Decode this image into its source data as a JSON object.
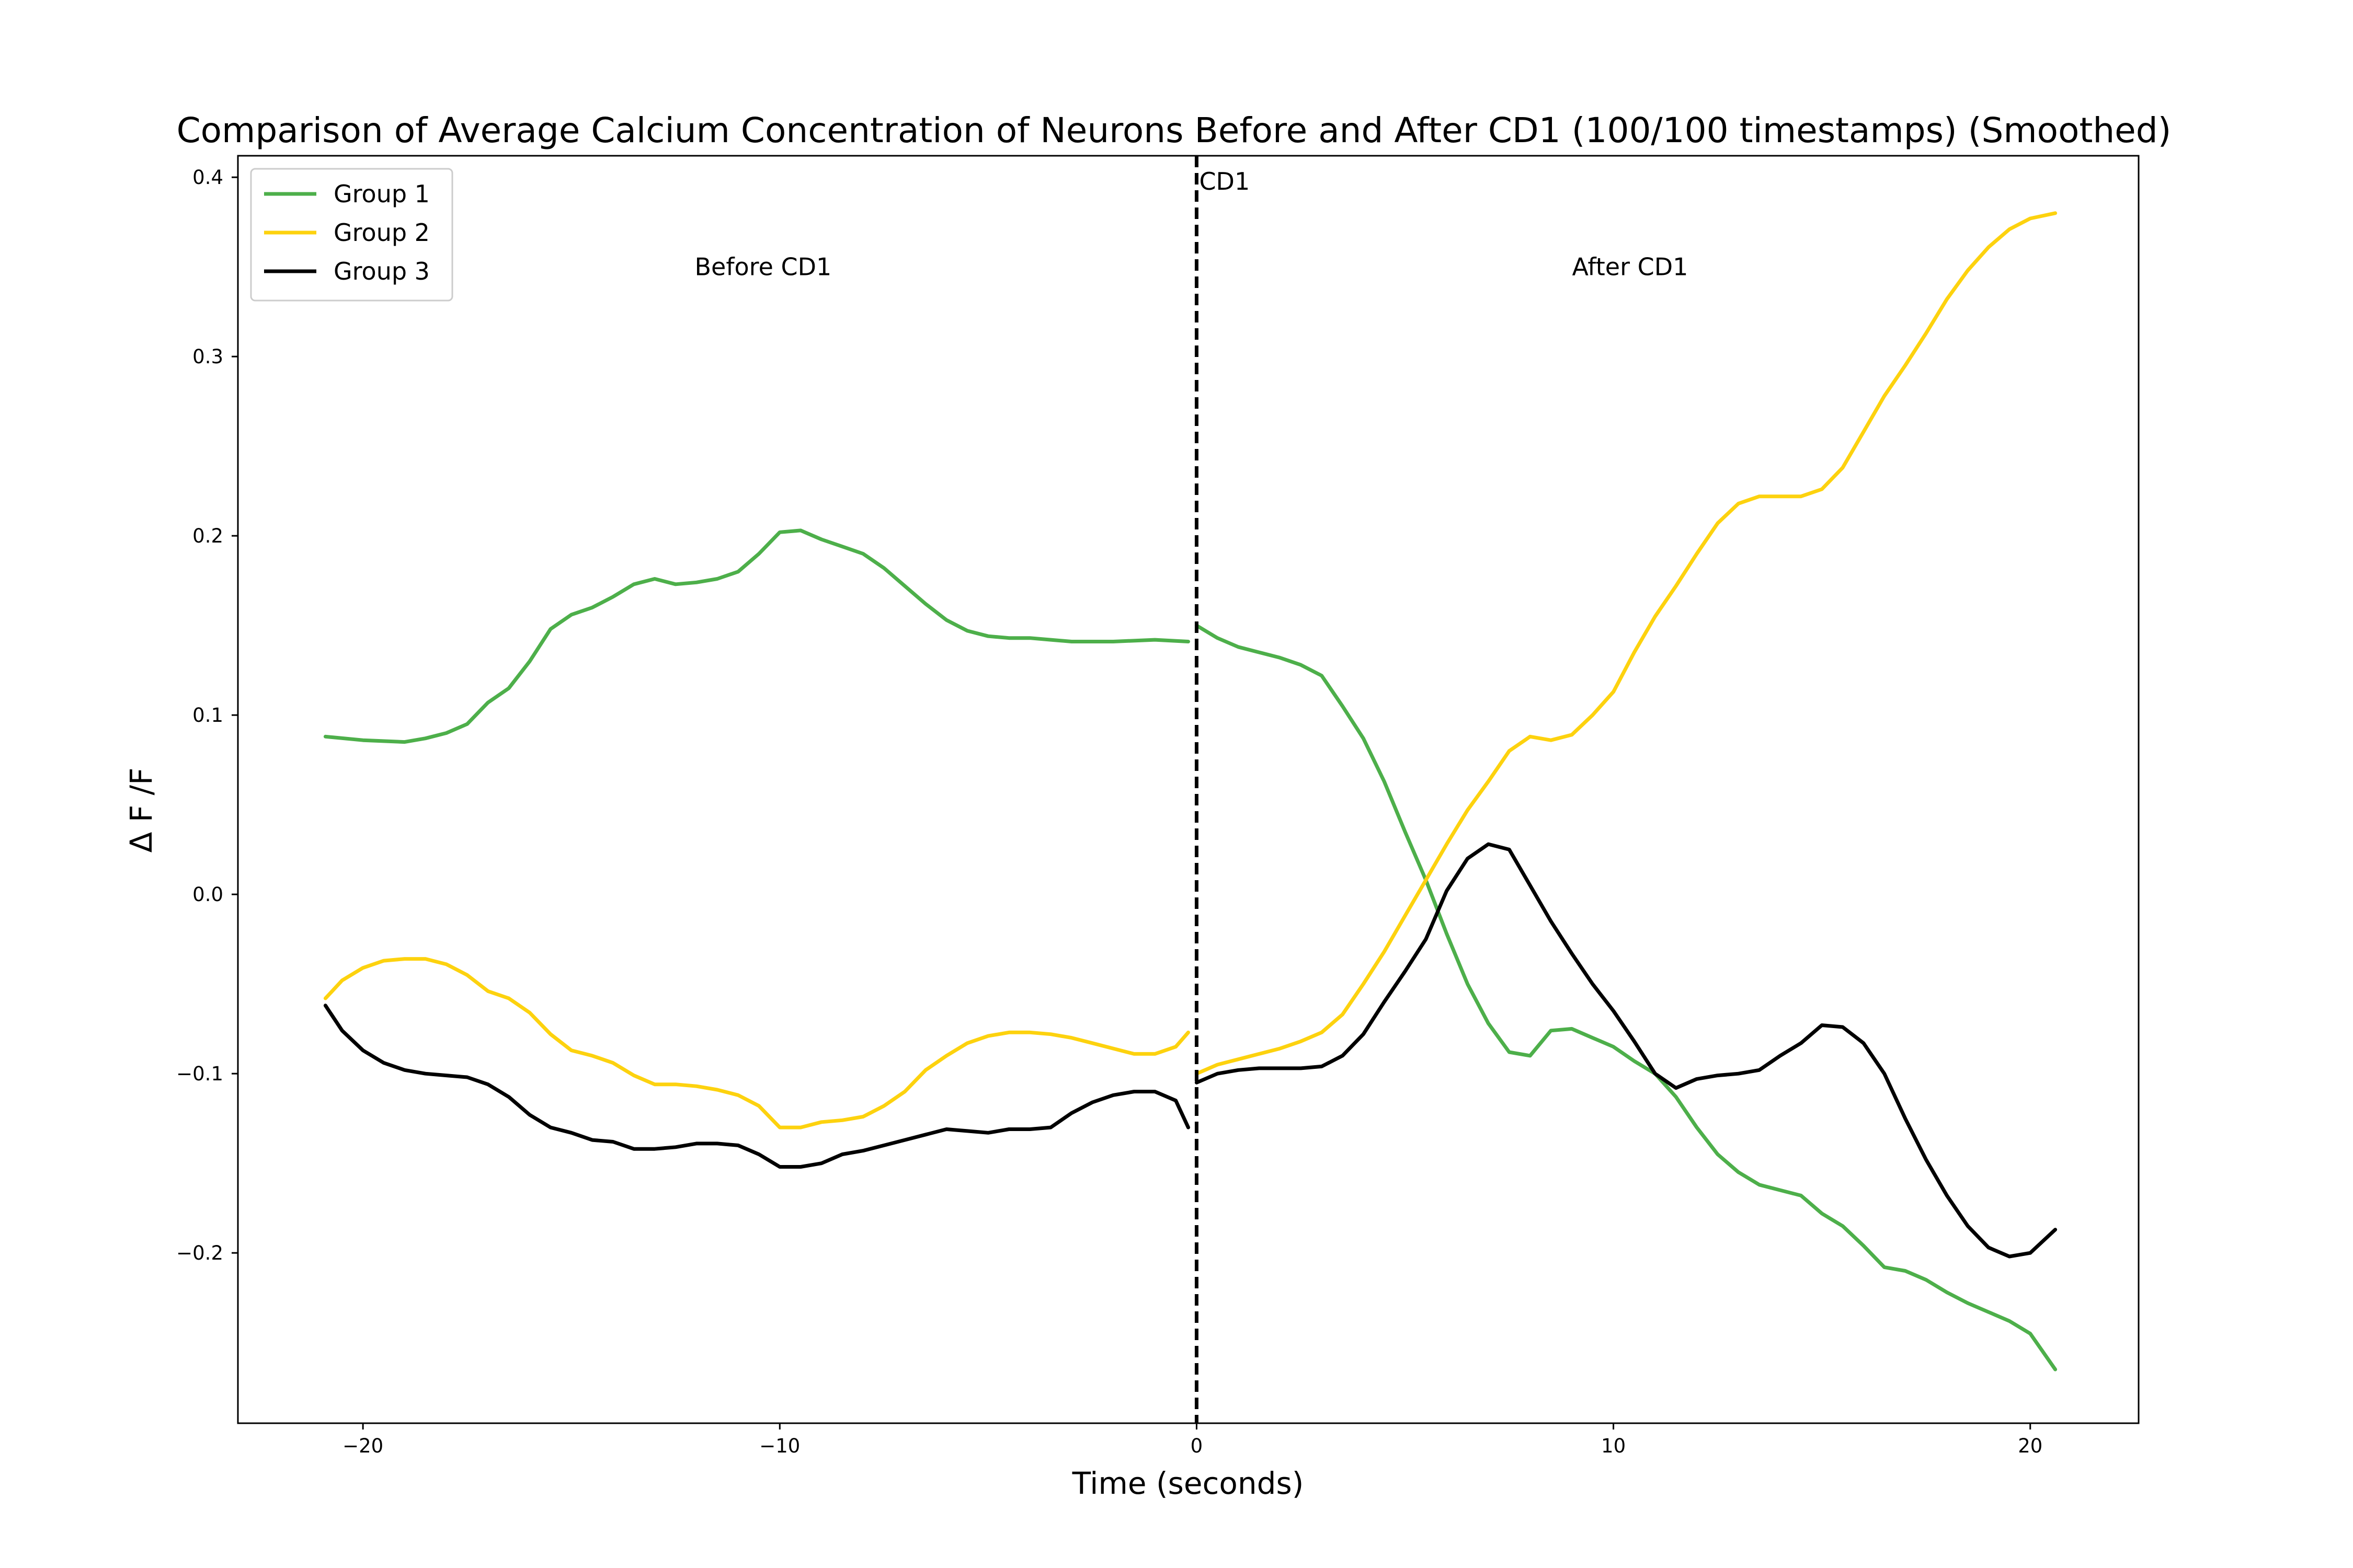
{
  "chart_data": {
    "type": "line",
    "title": "Comparison of Average Calcium Concentration of Neurons Before and After CD1 (100/100 timestamps) (Smoothed)",
    "xlabel": "Time (seconds)",
    "ylabel": "Δ F /F",
    "xlim": [
      -23,
      22.6
    ],
    "ylim": [
      -0.295,
      0.412
    ],
    "xticks": [
      -20,
      -10,
      0,
      10,
      20
    ],
    "xtick_labels": [
      "−20",
      "−10",
      "0",
      "10",
      "20"
    ],
    "yticks": [
      -0.2,
      -0.1,
      0.0,
      0.1,
      0.2,
      0.3,
      0.4
    ],
    "ytick_labels": [
      "−0.2",
      "−0.1",
      "0.0",
      "0.1",
      "0.2",
      "0.3",
      "0.4"
    ],
    "grid": false,
    "legend_position": "top-left",
    "vline": {
      "x": 0,
      "label": "CD1",
      "style": "dashed",
      "color": "#000000"
    },
    "annotations": [
      {
        "text": "Before CD1",
        "x": -10.4,
        "y": 0.35
      },
      {
        "text": "After CD1",
        "x": 10.4,
        "y": 0.35
      }
    ],
    "series": [
      {
        "name": "Group 1",
        "color": "#4daf4a",
        "segments": [
          [
            [
              -20.9,
              0.088
            ],
            [
              -20,
              0.086
            ],
            [
              -19,
              0.085
            ],
            [
              -18.5,
              0.087
            ],
            [
              -18,
              0.09
            ],
            [
              -17.5,
              0.095
            ],
            [
              -17,
              0.107
            ],
            [
              -16.5,
              0.115
            ],
            [
              -16,
              0.13
            ],
            [
              -15.5,
              0.148
            ],
            [
              -15,
              0.156
            ],
            [
              -14.5,
              0.16
            ],
            [
              -14,
              0.166
            ],
            [
              -13.5,
              0.173
            ],
            [
              -13,
              0.176
            ],
            [
              -12.5,
              0.173
            ],
            [
              -12,
              0.174
            ],
            [
              -11.5,
              0.176
            ],
            [
              -11,
              0.18
            ],
            [
              -10.5,
              0.19
            ],
            [
              -10,
              0.202
            ],
            [
              -9.5,
              0.203
            ],
            [
              -9,
              0.198
            ],
            [
              -8.5,
              0.194
            ],
            [
              -8,
              0.19
            ],
            [
              -7.5,
              0.182
            ],
            [
              -7,
              0.172
            ],
            [
              -6.5,
              0.162
            ],
            [
              -6,
              0.153
            ],
            [
              -5.5,
              0.147
            ],
            [
              -5,
              0.144
            ],
            [
              -4.5,
              0.143
            ],
            [
              -4,
              0.143
            ],
            [
              -3.5,
              0.142
            ],
            [
              -3,
              0.141
            ],
            [
              -2,
              0.141
            ],
            [
              -1,
              0.142
            ],
            [
              -0.2,
              0.141
            ]
          ],
          [
            [
              0,
              0.15
            ],
            [
              0.5,
              0.143
            ],
            [
              1,
              0.138
            ],
            [
              1.5,
              0.135
            ],
            [
              2,
              0.132
            ],
            [
              2.5,
              0.128
            ],
            [
              3,
              0.122
            ],
            [
              3.5,
              0.105
            ],
            [
              4,
              0.087
            ],
            [
              4.5,
              0.063
            ],
            [
              5,
              0.035
            ],
            [
              5.5,
              0.008
            ],
            [
              6,
              -0.022
            ],
            [
              6.5,
              -0.05
            ],
            [
              7,
              -0.072
            ],
            [
              7.5,
              -0.088
            ],
            [
              8,
              -0.09
            ],
            [
              8.5,
              -0.076
            ],
            [
              9,
              -0.075
            ],
            [
              9.5,
              -0.08
            ],
            [
              10,
              -0.085
            ],
            [
              10.5,
              -0.093
            ],
            [
              11,
              -0.1
            ],
            [
              11.5,
              -0.113
            ],
            [
              12,
              -0.13
            ],
            [
              12.5,
              -0.145
            ],
            [
              13,
              -0.155
            ],
            [
              13.5,
              -0.162
            ],
            [
              14,
              -0.165
            ],
            [
              14.5,
              -0.168
            ],
            [
              15,
              -0.178
            ],
            [
              15.5,
              -0.185
            ],
            [
              16,
              -0.196
            ],
            [
              16.5,
              -0.208
            ],
            [
              17,
              -0.21
            ],
            [
              17.5,
              -0.215
            ],
            [
              18,
              -0.222
            ],
            [
              18.5,
              -0.228
            ],
            [
              19,
              -0.233
            ],
            [
              19.5,
              -0.238
            ],
            [
              20,
              -0.245
            ],
            [
              20.6,
              -0.265
            ]
          ]
        ]
      },
      {
        "name": "Group 2",
        "color": "#fdd20e",
        "segments": [
          [
            [
              -20.9,
              -0.058
            ],
            [
              -20.5,
              -0.048
            ],
            [
              -20,
              -0.041
            ],
            [
              -19.5,
              -0.037
            ],
            [
              -19,
              -0.036
            ],
            [
              -18.5,
              -0.036
            ],
            [
              -18,
              -0.039
            ],
            [
              -17.5,
              -0.045
            ],
            [
              -17,
              -0.054
            ],
            [
              -16.5,
              -0.058
            ],
            [
              -16,
              -0.066
            ],
            [
              -15.5,
              -0.078
            ],
            [
              -15,
              -0.087
            ],
            [
              -14.5,
              -0.09
            ],
            [
              -14,
              -0.094
            ],
            [
              -13.5,
              -0.101
            ],
            [
              -13,
              -0.106
            ],
            [
              -12.5,
              -0.106
            ],
            [
              -12,
              -0.107
            ],
            [
              -11.5,
              -0.109
            ],
            [
              -11,
              -0.112
            ],
            [
              -10.5,
              -0.118
            ],
            [
              -10,
              -0.13
            ],
            [
              -9.5,
              -0.13
            ],
            [
              -9,
              -0.127
            ],
            [
              -8.5,
              -0.126
            ],
            [
              -8,
              -0.124
            ],
            [
              -7.5,
              -0.118
            ],
            [
              -7,
              -0.11
            ],
            [
              -6.5,
              -0.098
            ],
            [
              -6,
              -0.09
            ],
            [
              -5.5,
              -0.083
            ],
            [
              -5,
              -0.079
            ],
            [
              -4.5,
              -0.077
            ],
            [
              -4,
              -0.077
            ],
            [
              -3.5,
              -0.078
            ],
            [
              -3,
              -0.08
            ],
            [
              -2.5,
              -0.083
            ],
            [
              -2,
              -0.086
            ],
            [
              -1.5,
              -0.089
            ],
            [
              -1,
              -0.089
            ],
            [
              -0.5,
              -0.085
            ],
            [
              -0.2,
              -0.077
            ]
          ],
          [
            [
              0,
              -0.1
            ],
            [
              0.5,
              -0.095
            ],
            [
              1,
              -0.092
            ],
            [
              1.5,
              -0.089
            ],
            [
              2,
              -0.086
            ],
            [
              2.5,
              -0.082
            ],
            [
              3,
              -0.077
            ],
            [
              3.5,
              -0.067
            ],
            [
              4,
              -0.05
            ],
            [
              4.5,
              -0.032
            ],
            [
              5,
              -0.012
            ],
            [
              5.5,
              0.008
            ],
            [
              6,
              0.028
            ],
            [
              6.5,
              0.047
            ],
            [
              7,
              0.063
            ],
            [
              7.5,
              0.08
            ],
            [
              8,
              0.088
            ],
            [
              8.5,
              0.086
            ],
            [
              9,
              0.089
            ],
            [
              9.5,
              0.1
            ],
            [
              10,
              0.113
            ],
            [
              10.5,
              0.135
            ],
            [
              11,
              0.155
            ],
            [
              11.5,
              0.172
            ],
            [
              12,
              0.19
            ],
            [
              12.5,
              0.207
            ],
            [
              13,
              0.218
            ],
            [
              13.5,
              0.222
            ],
            [
              14,
              0.222
            ],
            [
              14.5,
              0.222
            ],
            [
              15,
              0.226
            ],
            [
              15.5,
              0.238
            ],
            [
              16,
              0.258
            ],
            [
              16.5,
              0.278
            ],
            [
              17,
              0.295
            ],
            [
              17.5,
              0.313
            ],
            [
              18,
              0.332
            ],
            [
              18.5,
              0.348
            ],
            [
              19,
              0.361
            ],
            [
              19.5,
              0.371
            ],
            [
              20,
              0.377
            ],
            [
              20.6,
              0.38
            ]
          ]
        ]
      },
      {
        "name": "Group 3",
        "color": "#000000",
        "segments": [
          [
            [
              -20.9,
              -0.062
            ],
            [
              -20.5,
              -0.076
            ],
            [
              -20,
              -0.087
            ],
            [
              -19.5,
              -0.094
            ],
            [
              -19,
              -0.098
            ],
            [
              -18.5,
              -0.1
            ],
            [
              -18,
              -0.101
            ],
            [
              -17.5,
              -0.102
            ],
            [
              -17,
              -0.106
            ],
            [
              -16.5,
              -0.113
            ],
            [
              -16,
              -0.123
            ],
            [
              -15.5,
              -0.13
            ],
            [
              -15,
              -0.133
            ],
            [
              -14.5,
              -0.137
            ],
            [
              -14,
              -0.138
            ],
            [
              -13.5,
              -0.142
            ],
            [
              -13,
              -0.142
            ],
            [
              -12.5,
              -0.141
            ],
            [
              -12,
              -0.139
            ],
            [
              -11.5,
              -0.139
            ],
            [
              -11,
              -0.14
            ],
            [
              -10.5,
              -0.145
            ],
            [
              -10,
              -0.152
            ],
            [
              -9.5,
              -0.152
            ],
            [
              -9,
              -0.15
            ],
            [
              -8.5,
              -0.145
            ],
            [
              -8,
              -0.143
            ],
            [
              -7.5,
              -0.14
            ],
            [
              -7,
              -0.137
            ],
            [
              -6.5,
              -0.134
            ],
            [
              -6,
              -0.131
            ],
            [
              -5.5,
              -0.132
            ],
            [
              -5,
              -0.133
            ],
            [
              -4.5,
              -0.131
            ],
            [
              -4,
              -0.131
            ],
            [
              -3.5,
              -0.13
            ],
            [
              -3,
              -0.122
            ],
            [
              -2.5,
              -0.116
            ],
            [
              -2,
              -0.112
            ],
            [
              -1.5,
              -0.11
            ],
            [
              -1,
              -0.11
            ],
            [
              -0.5,
              -0.115
            ],
            [
              -0.2,
              -0.13
            ]
          ],
          [
            [
              0,
              -0.105
            ],
            [
              0.5,
              -0.1
            ],
            [
              1,
              -0.098
            ],
            [
              1.5,
              -0.097
            ],
            [
              2,
              -0.097
            ],
            [
              2.5,
              -0.097
            ],
            [
              3,
              -0.096
            ],
            [
              3.5,
              -0.09
            ],
            [
              4,
              -0.078
            ],
            [
              4.5,
              -0.06
            ],
            [
              5,
              -0.043
            ],
            [
              5.5,
              -0.025
            ],
            [
              6,
              0.002
            ],
            [
              6.5,
              0.02
            ],
            [
              7,
              0.028
            ],
            [
              7.5,
              0.025
            ],
            [
              8,
              0.005
            ],
            [
              8.5,
              -0.015
            ],
            [
              9,
              -0.033
            ],
            [
              9.5,
              -0.05
            ],
            [
              10,
              -0.065
            ],
            [
              10.5,
              -0.082
            ],
            [
              11,
              -0.1
            ],
            [
              11.5,
              -0.108
            ],
            [
              12,
              -0.103
            ],
            [
              12.5,
              -0.101
            ],
            [
              13,
              -0.1
            ],
            [
              13.5,
              -0.098
            ],
            [
              14,
              -0.09
            ],
            [
              14.5,
              -0.083
            ],
            [
              15,
              -0.073
            ],
            [
              15.5,
              -0.074
            ],
            [
              16,
              -0.083
            ],
            [
              16.5,
              -0.1
            ],
            [
              17,
              -0.125
            ],
            [
              17.5,
              -0.148
            ],
            [
              18,
              -0.168
            ],
            [
              18.5,
              -0.185
            ],
            [
              19,
              -0.197
            ],
            [
              19.5,
              -0.202
            ],
            [
              20,
              -0.2
            ],
            [
              20.6,
              -0.187
            ]
          ]
        ]
      }
    ]
  }
}
